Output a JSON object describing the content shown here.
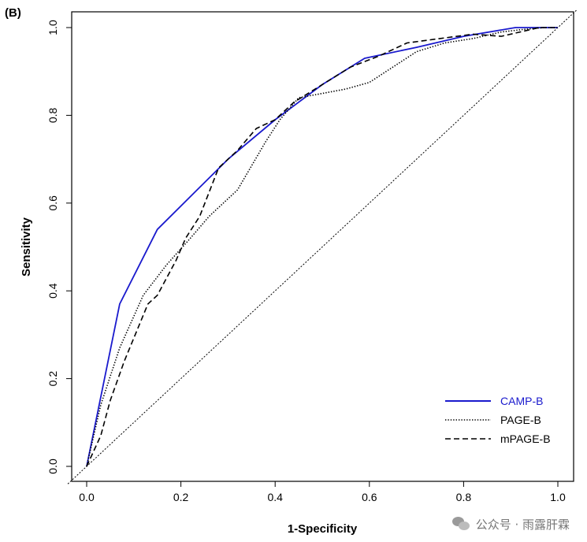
{
  "panel_label": "(B)",
  "watermark": {
    "text": "公众号 · 雨露肝霖",
    "icon": "wechat-icon"
  },
  "chart_data": {
    "type": "line",
    "title": "",
    "xlabel": "1-Specificity",
    "ylabel": "Sensitivity",
    "xlim": [
      0,
      1
    ],
    "ylim": [
      0,
      1
    ],
    "x_ticks": [
      "0.0",
      "0.2",
      "0.4",
      "0.6",
      "0.8",
      "1.0"
    ],
    "y_ticks": [
      "0.0",
      "0.2",
      "0.4",
      "0.6",
      "0.8",
      "1.0"
    ],
    "grid": false,
    "legend_position": "bottom-right",
    "reference_line": {
      "style": "dotted",
      "color": "#000000",
      "from": [
        0,
        0
      ],
      "to": [
        1,
        1
      ]
    },
    "series": [
      {
        "name": "CAMP-B",
        "color": "#1a1acd",
        "dash": "solid",
        "x": [
          0,
          0.07,
          0.15,
          0.3,
          0.4,
          0.5,
          0.59,
          0.7,
          0.8,
          0.91,
          0.93,
          1.0
        ],
        "y": [
          0,
          0.37,
          0.54,
          0.7,
          0.79,
          0.87,
          0.93,
          0.955,
          0.98,
          1.0,
          1.0,
          1.0
        ]
      },
      {
        "name": "PAGE-B",
        "color": "#000000",
        "dash": "dotted",
        "x": [
          0,
          0.03,
          0.07,
          0.12,
          0.17,
          0.22,
          0.26,
          0.32,
          0.38,
          0.41,
          0.45,
          0.5,
          0.55,
          0.6,
          0.65,
          0.7,
          0.76,
          0.82,
          0.88,
          0.92,
          0.97,
          1.0
        ],
        "y": [
          0,
          0.14,
          0.27,
          0.39,
          0.46,
          0.52,
          0.57,
          0.63,
          0.74,
          0.79,
          0.84,
          0.85,
          0.86,
          0.875,
          0.91,
          0.945,
          0.965,
          0.975,
          0.99,
          0.995,
          1.0,
          1.0
        ]
      },
      {
        "name": "mPAGE-B",
        "color": "#000000",
        "dash": "dashed",
        "x": [
          0,
          0.03,
          0.05,
          0.08,
          0.13,
          0.15,
          0.19,
          0.21,
          0.24,
          0.28,
          0.32,
          0.36,
          0.4,
          0.44,
          0.5,
          0.56,
          0.62,
          0.68,
          0.75,
          0.82,
          0.88,
          0.92,
          0.96,
          1.0
        ],
        "y": [
          0,
          0.07,
          0.15,
          0.24,
          0.37,
          0.39,
          0.47,
          0.52,
          0.57,
          0.68,
          0.72,
          0.77,
          0.79,
          0.83,
          0.87,
          0.91,
          0.935,
          0.965,
          0.975,
          0.985,
          0.98,
          0.99,
          1.0,
          1.0
        ]
      }
    ]
  }
}
